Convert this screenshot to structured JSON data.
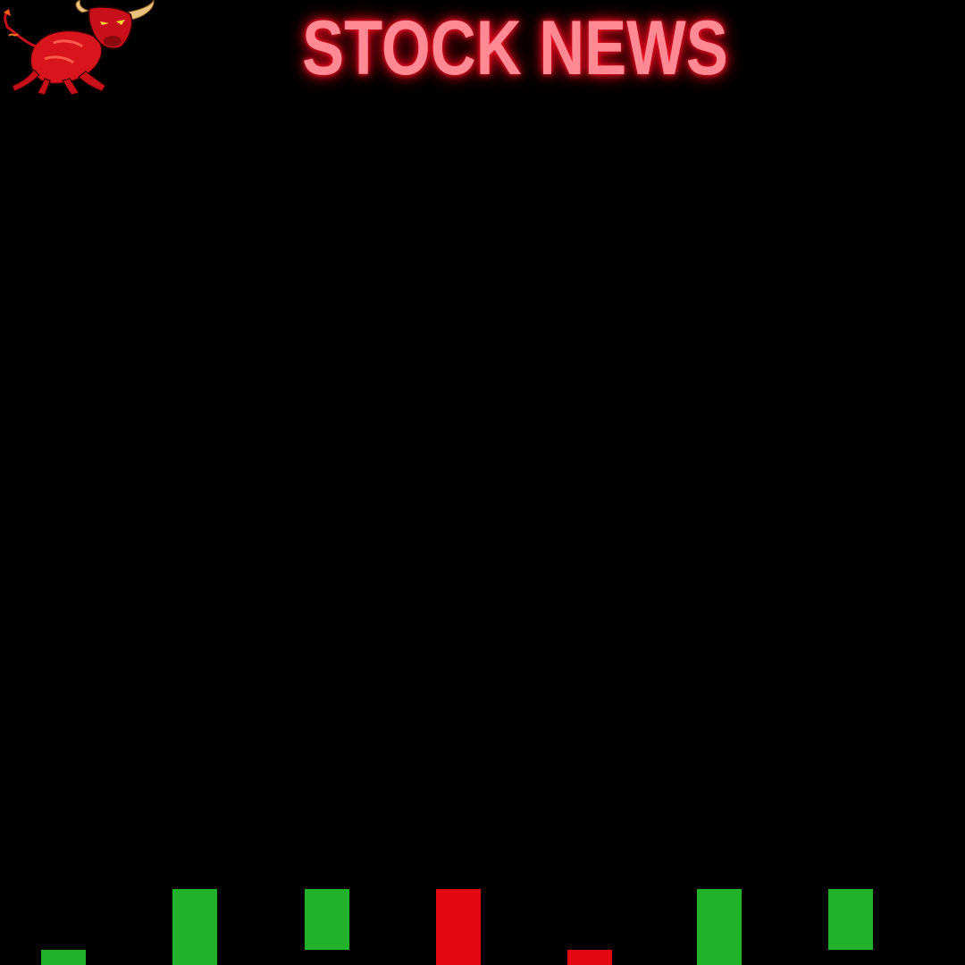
{
  "header": {
    "title": "STOCK NEWS",
    "title_color": "#ff8a94",
    "glow_color": "#ff1a2e"
  },
  "logo": {
    "icon": "charging-bull-icon",
    "color": "#d8141c"
  },
  "background_color": "#000000",
  "candles": [
    {
      "direction": "up",
      "color": "#22b22a"
    },
    {
      "direction": "up",
      "color": "#22b22a"
    },
    {
      "direction": "up",
      "color": "#22b22a"
    },
    {
      "direction": "down",
      "color": "#e30613"
    },
    {
      "direction": "down",
      "color": "#e30613"
    },
    {
      "direction": "up",
      "color": "#22b22a"
    },
    {
      "direction": "up",
      "color": "#22b22a"
    }
  ]
}
